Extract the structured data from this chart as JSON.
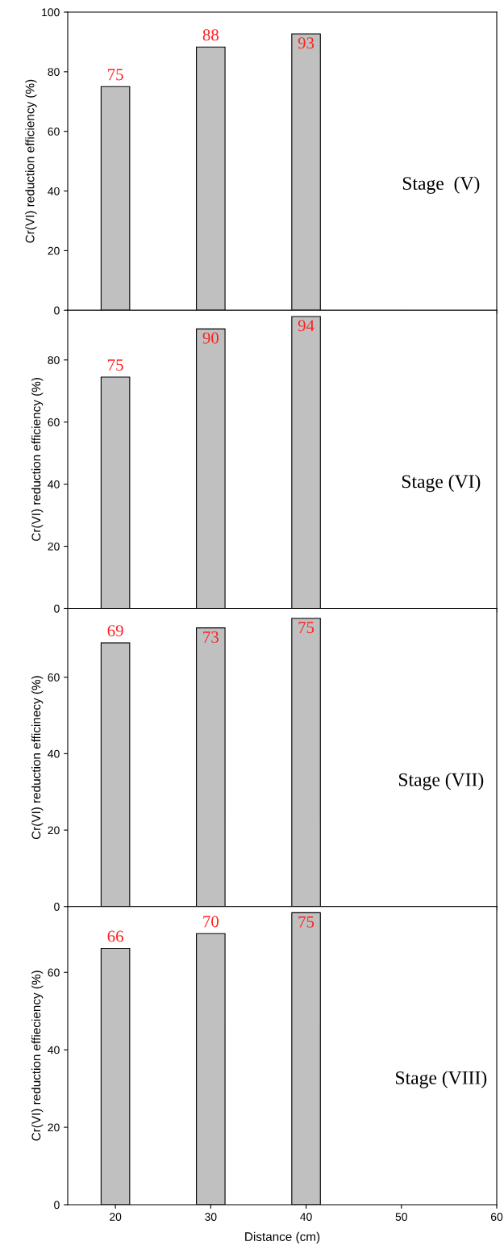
{
  "chart_data": [
    {
      "type": "bar",
      "x": [
        20,
        30,
        40
      ],
      "values": [
        75,
        88.3,
        92.7
      ],
      "value_labels": [
        "75",
        "88",
        "93"
      ],
      "color": "#c0c0c0",
      "ylabel": "Cr(VI) reduction efficiency (%)",
      "xlim": [
        15,
        60
      ],
      "xticks": [
        20,
        30,
        40,
        50,
        60
      ],
      "ylim": [
        0,
        100
      ],
      "yticks": [
        0,
        20,
        40,
        60,
        80,
        100
      ],
      "tick_labels": "y",
      "annotations": [
        "Stage  (V)"
      ]
    },
    {
      "type": "bar",
      "x": [
        20,
        30,
        40
      ],
      "values": [
        74.5,
        90,
        94
      ],
      "value_labels": [
        "75",
        "90",
        "94"
      ],
      "color": "#c0c0c0",
      "ylabel": "Cr(VI) reduction efficiency (%)",
      "xlim": [
        15,
        60
      ],
      "xticks": [
        20,
        30,
        40,
        50,
        60
      ],
      "ylim": [
        0,
        96
      ],
      "yticks": [
        0,
        20,
        40,
        60,
        80
      ],
      "tick_labels": "y",
      "annotations": [
        "Stage (VI)"
      ]
    },
    {
      "type": "bar",
      "x": [
        20,
        30,
        40
      ],
      "values": [
        69,
        72.9,
        75.4
      ],
      "value_labels": [
        "69",
        "73",
        "75"
      ],
      "color": "#c0c0c0",
      "ylabel": "Cr(VI) reduction efficinecy (%)",
      "xlim": [
        15,
        60
      ],
      "xticks": [
        20,
        30,
        40,
        50,
        60
      ],
      "ylim": [
        0,
        78
      ],
      "yticks": [
        0,
        20,
        40,
        60
      ],
      "tick_labels": "y",
      "annotations": [
        "Stage (VII)"
      ]
    },
    {
      "type": "bar",
      "x": [
        20,
        30,
        40
      ],
      "values": [
        66.2,
        70,
        75.4
      ],
      "value_labels": [
        "66",
        "70",
        "75"
      ],
      "color": "#c0c0c0",
      "ylabel": "Cr(VI) reduction effieciency (%)",
      "xlabel": "Distance (cm)",
      "xlim": [
        15,
        60
      ],
      "xticks": [
        20,
        30,
        40,
        50,
        60
      ],
      "ylim": [
        0,
        77
      ],
      "yticks": [
        0,
        20,
        40,
        60
      ],
      "annotations": [
        "Stage (VIII)"
      ]
    }
  ]
}
